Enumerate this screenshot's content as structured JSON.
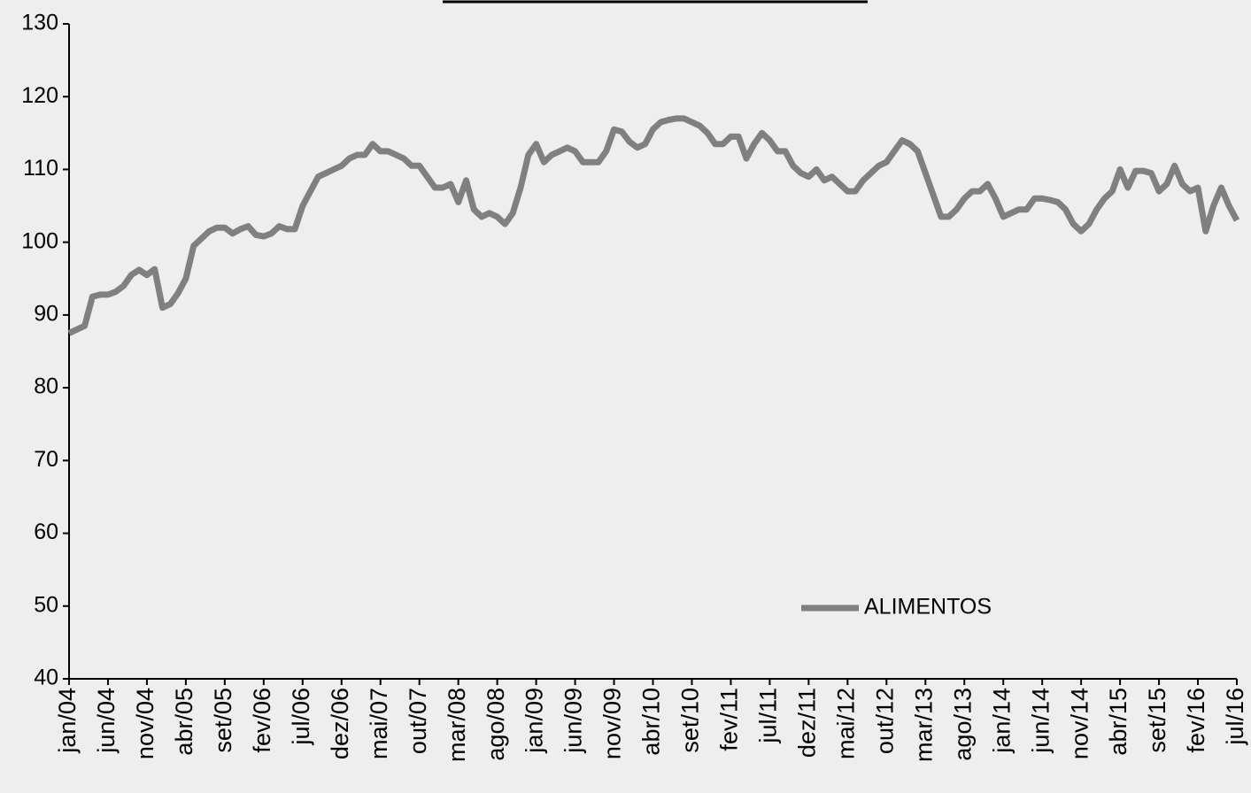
{
  "chart_data": {
    "type": "line",
    "categories": [
      "jan/04",
      null,
      null,
      null,
      null,
      "jun/04",
      null,
      null,
      null,
      null,
      "nov/04",
      null,
      null,
      null,
      null,
      "abr/05",
      null,
      null,
      null,
      null,
      "set/05",
      null,
      null,
      null,
      null,
      "fev/06",
      null,
      null,
      null,
      null,
      "jul/06",
      null,
      null,
      null,
      null,
      "dez/06",
      null,
      null,
      null,
      null,
      "mai/07",
      null,
      null,
      null,
      null,
      "out/07",
      null,
      null,
      null,
      null,
      "mar/08",
      null,
      null,
      null,
      null,
      "ago/08",
      null,
      null,
      null,
      null,
      "jan/09",
      null,
      null,
      null,
      null,
      "jun/09",
      null,
      null,
      null,
      null,
      "nov/09",
      null,
      null,
      null,
      null,
      "abr/10",
      null,
      null,
      null,
      null,
      "set/10",
      null,
      null,
      null,
      null,
      "fev/11",
      null,
      null,
      null,
      null,
      "jul/11",
      null,
      null,
      null,
      null,
      "dez/11",
      null,
      null,
      null,
      null,
      "mai/12",
      null,
      null,
      null,
      null,
      "out/12",
      null,
      null,
      null,
      null,
      "mar/13",
      null,
      null,
      null,
      null,
      "ago/13",
      null,
      null,
      null,
      null,
      "jan/14",
      null,
      null,
      null,
      null,
      "jun/14",
      null,
      null,
      null,
      null,
      "nov/14",
      null,
      null,
      null,
      null,
      "abr/15",
      null,
      null,
      null,
      null,
      "set/15",
      null,
      null,
      null,
      null,
      "fev/16",
      null,
      null,
      null,
      null,
      "jul/16"
    ],
    "series": [
      {
        "name": "ALIMENTOS",
        "color": "#808080",
        "values": [
          87.5,
          88,
          88.5,
          92.5,
          92.8,
          92.8,
          93.2,
          94,
          95.5,
          96.2,
          95.5,
          96.3,
          91,
          91.5,
          93,
          95,
          99.5,
          100.5,
          101.5,
          102,
          102,
          101.2,
          101.8,
          102.2,
          101,
          100.8,
          101.2,
          102.2,
          101.8,
          101.8,
          105,
          107,
          109,
          109.5,
          110,
          110.5,
          111.5,
          112,
          112,
          113.5,
          112.5,
          112.5,
          112,
          111.5,
          110.5,
          110.5,
          109,
          107.5,
          107.5,
          108,
          105.5,
          108.5,
          104.5,
          103.5,
          104,
          103.5,
          102.5,
          104,
          107.5,
          112,
          113.5,
          111,
          112,
          112.5,
          113,
          112.5,
          111,
          111,
          111,
          112.5,
          115.5,
          115.2,
          113.8,
          113,
          113.5,
          115.5,
          116.5,
          116.8,
          117,
          117,
          116.5,
          116,
          115,
          113.5,
          113.5,
          114.5,
          114.5,
          111.5,
          113.5,
          115,
          114,
          112.5,
          112.5,
          110.5,
          109.5,
          109,
          110,
          108.5,
          109,
          108,
          107,
          107,
          108.5,
          109.5,
          110.5,
          111,
          112.5,
          114,
          113.5,
          112.5,
          109.5,
          106.5,
          103.5,
          103.5,
          104.5,
          106,
          107,
          107,
          108,
          106,
          103.5,
          104,
          104.5,
          104.5,
          106,
          106,
          105.8,
          105.5,
          104.5,
          102.5,
          101.5,
          102.5,
          104.5,
          106,
          107,
          110,
          107.5,
          109.8,
          109.8,
          109.5,
          107,
          108,
          110.5,
          108,
          107,
          107.5,
          101.5,
          105,
          107.5,
          105,
          103
        ]
      }
    ],
    "ylim": [
      40,
      130
    ],
    "yticks": [
      40,
      50,
      60,
      70,
      80,
      90,
      100,
      110,
      120,
      130
    ]
  }
}
